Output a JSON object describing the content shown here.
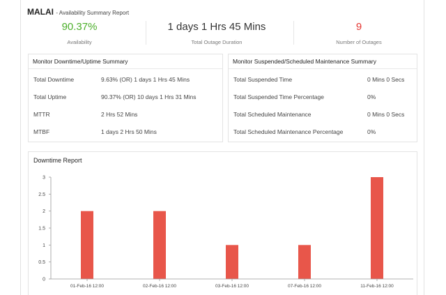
{
  "header": {
    "host": "MALAI",
    "subtitle": "Availability Summary Report"
  },
  "kpis": [
    {
      "value": "90.37%",
      "label": "Availability",
      "color": "#4caf2a"
    },
    {
      "value": "1 days 1 Hrs 45 Mins",
      "label": "Total Outage Duration",
      "color": "#333333"
    },
    {
      "value": "9",
      "label": "Number of Outages",
      "color": "#e53935"
    }
  ],
  "downtime_summary": {
    "title": "Monitor Downtime/Uptime Summary",
    "rows": [
      {
        "label": "Total Downtime",
        "value": "9.63% (OR) 1 days 1 Hrs 45 Mins"
      },
      {
        "label": "Total Uptime",
        "value": "90.37% (OR) 10 days 1 Hrs 31 Mins"
      },
      {
        "label": "MTTR",
        "value": "2 Hrs 52 Mins"
      },
      {
        "label": "MTBF",
        "value": "1 days 2 Hrs 50 Mins"
      }
    ]
  },
  "maintenance_summary": {
    "title": "Monitor Suspended/Scheduled Maintenance Summary",
    "rows": [
      {
        "label": "Total Suspended Time",
        "value": "0 Mins 0 Secs"
      },
      {
        "label": "Total Suspended Time Percentage",
        "value": "0%"
      },
      {
        "label": "Total Scheduled Maintenance",
        "value": "0 Mins 0 Secs"
      },
      {
        "label": "Total Scheduled Maintenance Percentage",
        "value": "0%"
      }
    ]
  },
  "chart_data": {
    "type": "bar",
    "title": "Downtime Report",
    "categories": [
      "01-Feb-16 12:00",
      "02-Feb-16 12:00",
      "03-Feb-16 12:00",
      "07-Feb-16 12:00",
      "11-Feb-16 12:00"
    ],
    "values": [
      2,
      2,
      1,
      1,
      3
    ],
    "ylim": [
      0,
      3
    ],
    "yticks": [
      "0",
      "0.5",
      "1",
      "1.5",
      "2",
      "2.5",
      "3"
    ],
    "bar_color": "#e8564a",
    "grid": false
  }
}
